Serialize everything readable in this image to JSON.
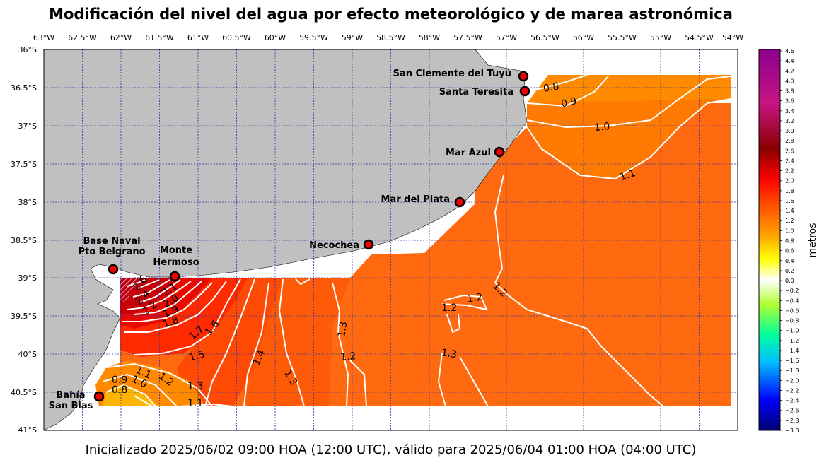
{
  "title": "Modificación del nivel del agua por efecto meteorológico y de marea astronómica",
  "footer": "Inicializado 2025/06/02 09:00 HOA (12:00 UTC), válido para 2025/06/04 01:00 HOA (04:00 UTC)",
  "map": {
    "lon_range": [
      -63.0,
      -54.0
    ],
    "lat_range": [
      -41.0,
      -36.0
    ],
    "lon_ticks": [
      "63°W",
      "62.5°W",
      "62°W",
      "61.5°W",
      "61°W",
      "60.5°W",
      "60°W",
      "59.5°W",
      "59°W",
      "58.5°W",
      "58°W",
      "57.5°W",
      "57°W",
      "56.5°W",
      "56°W",
      "55.5°W",
      "55°W",
      "54.5°W",
      "54°W"
    ],
    "lat_ticks": [
      "36°S",
      "36.5°S",
      "37°S",
      "37.5°S",
      "38°S",
      "38.5°S",
      "39°S",
      "39.5°S",
      "40°S",
      "40.5°S",
      "41°S"
    ],
    "grid": "dotted",
    "land_color": "#c0c0c0",
    "stations": [
      {
        "name": "San Clemente del Tuyú",
        "lon": -56.7,
        "lat": -36.35
      },
      {
        "name": "Santa Teresita",
        "lon": -56.69,
        "lat": -36.54
      },
      {
        "name": "Mar Azul",
        "lon": -57.0,
        "lat": -37.34
      },
      {
        "name": "Mar del Plata",
        "lon": -57.52,
        "lat": -38.0
      },
      {
        "name": "Necochea",
        "lon": -58.74,
        "lat": -38.56
      },
      {
        "name": "Base Naval Pto Belgrano",
        "lon": -62.1,
        "lat": -38.88
      },
      {
        "name": "Monte Hermoso",
        "lon": -61.3,
        "lat": -38.99
      },
      {
        "name": "Bahía San Blas",
        "lon": -62.27,
        "lat": -40.56
      }
    ],
    "station_labels": {
      "san_clemente": "San Clemente del Tuyú",
      "santa_teresita": "Santa Teresita",
      "mar_azul": "Mar Azul",
      "mar_del_plata": "Mar del Plata",
      "necochea": "Necochea",
      "base_naval_1": "Base Naval",
      "base_naval_2": "Pto Belgrano",
      "monte_1": "Monte",
      "monte_2": "Hermoso",
      "bahia_1": "Bahía",
      "bahia_2": "San Blas"
    },
    "contour_labels": [
      "0.8",
      "0.9",
      "1.0",
      "1.1",
      "1.2",
      "1.2",
      "1.2",
      "1.3",
      "1.3",
      "1.2",
      "1.4",
      "1.3",
      "1.5",
      "1.7",
      "1.6",
      "1.8",
      "1.9",
      "2.0",
      "2.1",
      "2.2",
      "2.4",
      "2.6",
      "1.1",
      "0.9",
      "0.8",
      "1.0",
      "1.2",
      "1.3",
      "1.1"
    ]
  },
  "colorbar": {
    "label": "metros",
    "range": [
      -3.0,
      4.6
    ],
    "ticks": [
      "4.6",
      "4.4",
      "4.2",
      "4.0",
      "3.8",
      "3.6",
      "3.4",
      "3.2",
      "3.0",
      "2.8",
      "2.6",
      "2.4",
      "2.2",
      "2.0",
      "1.8",
      "1.6",
      "1.4",
      "1.2",
      "1.0",
      "0.8",
      "0.6",
      "0.4",
      "0.2",
      "0.0",
      "−0.2",
      "−0.4",
      "−0.6",
      "−0.8",
      "−1.0",
      "−1.2",
      "−1.4",
      "−1.6",
      "−1.8",
      "−2.0",
      "−2.2",
      "−2.4",
      "−2.6",
      "−2.8",
      "−3.0"
    ],
    "colors": [
      "#000080",
      "#0000ff",
      "#00bfff",
      "#00ff7f",
      "#adff2f",
      "#ffffff",
      "#ffff00",
      "#ffa500",
      "#ff4500",
      "#ff0000",
      "#8b0000",
      "#c71585",
      "#8b008b"
    ]
  }
}
